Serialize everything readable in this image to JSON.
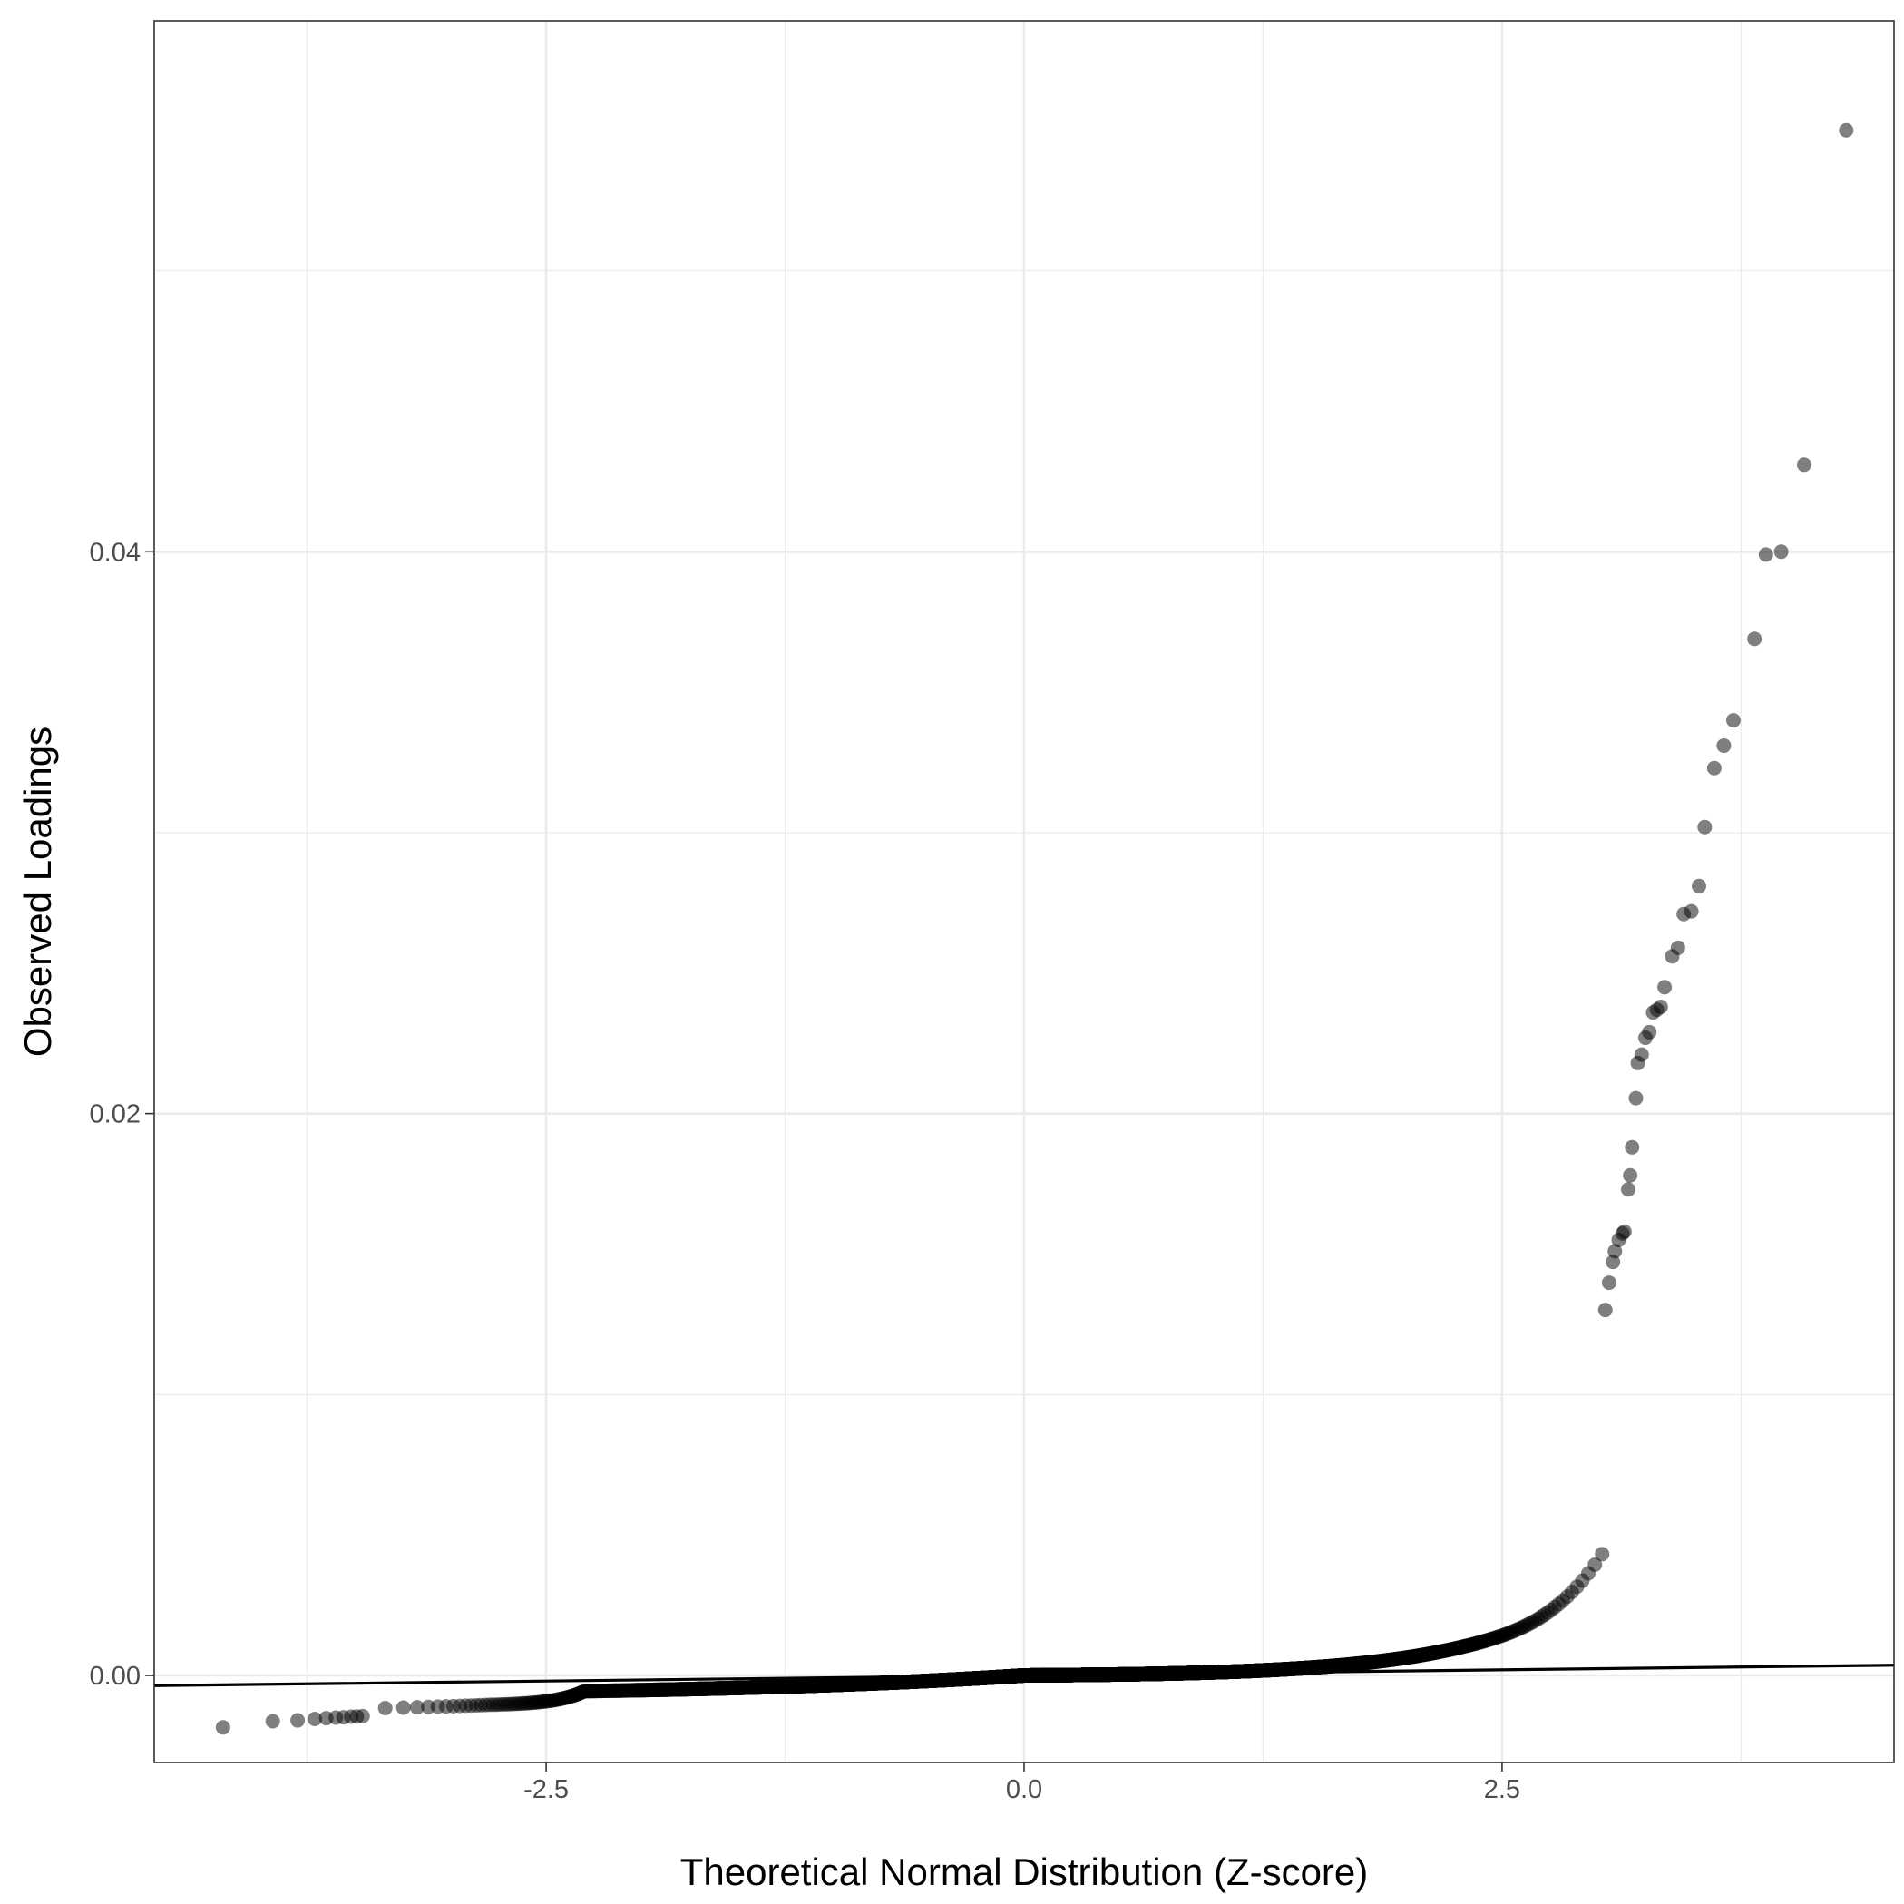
{
  "chart_data": {
    "type": "scatter",
    "xlabel": "Theoretical Normal Distribution (Z-score)",
    "ylabel": "Observed Loadings",
    "xlim": [
      -4.55,
      4.55
    ],
    "ylim": [
      -0.0031,
      0.0589
    ],
    "x_ticks": [
      -2.5,
      0.0,
      2.5
    ],
    "x_tick_labels": [
      "-2.5",
      "0.0",
      "2.5"
    ],
    "y_ticks": [
      0.0,
      0.02,
      0.04
    ],
    "y_tick_labels": [
      "0.00",
      "0.02",
      "0.04"
    ],
    "grid": true,
    "point_color": "#000000",
    "point_opacity": 0.5,
    "reference_line": {
      "slope": 8e-05,
      "intercept": 0.0
    },
    "sample_size": 6000,
    "points": [
      {
        "x": -4.19,
        "y": -0.00185
      },
      {
        "x": -3.93,
        "y": -0.00163
      },
      {
        "x": -3.8,
        "y": -0.0016
      },
      {
        "x": -3.71,
        "y": -0.00155
      },
      {
        "x": -3.65,
        "y": -0.00152
      },
      {
        "x": -3.6,
        "y": -0.0015
      },
      {
        "x": -3.56,
        "y": -0.00149
      },
      {
        "x": -3.52,
        "y": -0.00147
      },
      {
        "x": -3.49,
        "y": -0.00146
      },
      {
        "x": -3.46,
        "y": -0.00145
      },
      {
        "x": 3.04,
        "y": 0.01301
      },
      {
        "x": 3.06,
        "y": 0.01398
      },
      {
        "x": 3.08,
        "y": 0.01472
      },
      {
        "x": 3.09,
        "y": 0.0151
      },
      {
        "x": 3.11,
        "y": 0.0155
      },
      {
        "x": 3.13,
        "y": 0.01573
      },
      {
        "x": 3.14,
        "y": 0.0158
      },
      {
        "x": 3.16,
        "y": 0.0173
      },
      {
        "x": 3.17,
        "y": 0.0178
      },
      {
        "x": 3.18,
        "y": 0.0188
      },
      {
        "x": 3.2,
        "y": 0.02055
      },
      {
        "x": 3.21,
        "y": 0.0218
      },
      {
        "x": 3.23,
        "y": 0.0221
      },
      {
        "x": 3.25,
        "y": 0.0227
      },
      {
        "x": 3.27,
        "y": 0.0229
      },
      {
        "x": 3.29,
        "y": 0.0236
      },
      {
        "x": 3.31,
        "y": 0.0237
      },
      {
        "x": 3.33,
        "y": 0.0238
      },
      {
        "x": 3.35,
        "y": 0.0245
      },
      {
        "x": 3.39,
        "y": 0.0256
      },
      {
        "x": 3.42,
        "y": 0.0259
      },
      {
        "x": 3.45,
        "y": 0.0271
      },
      {
        "x": 3.49,
        "y": 0.0272
      },
      {
        "x": 3.53,
        "y": 0.0281
      },
      {
        "x": 3.56,
        "y": 0.0302
      },
      {
        "x": 3.61,
        "y": 0.0323
      },
      {
        "x": 3.66,
        "y": 0.0331
      },
      {
        "x": 3.71,
        "y": 0.034
      },
      {
        "x": 3.82,
        "y": 0.0369
      },
      {
        "x": 3.88,
        "y": 0.0399
      },
      {
        "x": 3.96,
        "y": 0.04
      },
      {
        "x": 4.08,
        "y": 0.0431
      },
      {
        "x": 4.3,
        "y": 0.055
      }
    ]
  }
}
